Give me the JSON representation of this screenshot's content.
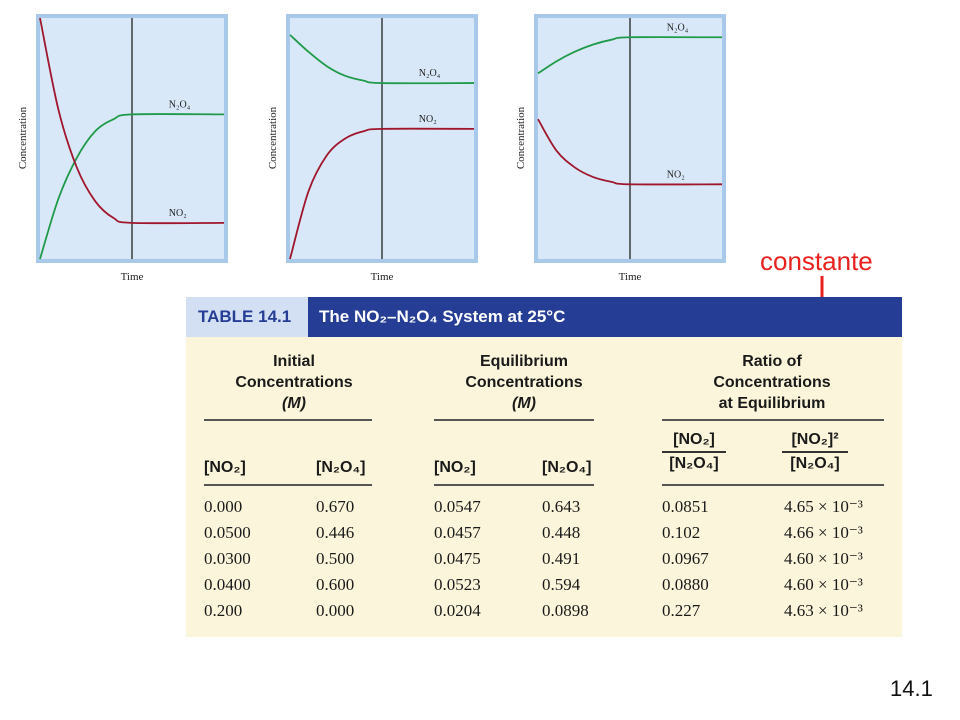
{
  "colors": {
    "n2o4": "#1e9a48",
    "no2": "#a0162c",
    "panel": "#d9e8f8",
    "frame": "#a9c9ea",
    "accent": "#e8211f",
    "table_header": "#263d95",
    "table_bg": "#fbf6db"
  },
  "chart_data": [
    {
      "type": "line",
      "xlabel": "Time",
      "ylabel": "Concentration",
      "equilibrium_at": 0.5,
      "series": [
        {
          "name": "N₂O₄",
          "values": [
            [
              0,
              0.0
            ],
            [
              0.1,
              0.25
            ],
            [
              0.2,
              0.42
            ],
            [
              0.3,
              0.53
            ],
            [
              0.4,
              0.58
            ],
            [
              0.5,
              0.6
            ],
            [
              1,
              0.6
            ]
          ]
        },
        {
          "name": "NO₂",
          "values": [
            [
              0,
              1.0
            ],
            [
              0.1,
              0.62
            ],
            [
              0.2,
              0.38
            ],
            [
              0.3,
              0.24
            ],
            [
              0.4,
              0.17
            ],
            [
              0.5,
              0.15
            ],
            [
              1,
              0.15
            ]
          ]
        }
      ]
    },
    {
      "type": "line",
      "xlabel": "Time",
      "ylabel": "Concentration",
      "equilibrium_at": 0.5,
      "series": [
        {
          "name": "N₂O₄",
          "values": [
            [
              0,
              0.93
            ],
            [
              0.1,
              0.86
            ],
            [
              0.2,
              0.8
            ],
            [
              0.3,
              0.76
            ],
            [
              0.4,
              0.74
            ],
            [
              0.5,
              0.73
            ],
            [
              1,
              0.73
            ]
          ]
        },
        {
          "name": "NO₂",
          "values": [
            [
              0,
              0.0
            ],
            [
              0.1,
              0.28
            ],
            [
              0.2,
              0.43
            ],
            [
              0.3,
              0.5
            ],
            [
              0.4,
              0.53
            ],
            [
              0.5,
              0.54
            ],
            [
              1,
              0.54
            ]
          ]
        }
      ]
    },
    {
      "type": "line",
      "xlabel": "Time",
      "ylabel": "Concentration",
      "equilibrium_at": 0.5,
      "series": [
        {
          "name": "N₂O₄",
          "values": [
            [
              0,
              0.77
            ],
            [
              0.1,
              0.82
            ],
            [
              0.2,
              0.86
            ],
            [
              0.3,
              0.89
            ],
            [
              0.4,
              0.91
            ],
            [
              0.5,
              0.92
            ],
            [
              1,
              0.92
            ]
          ]
        },
        {
          "name": "NO₂",
          "values": [
            [
              0,
              0.58
            ],
            [
              0.1,
              0.45
            ],
            [
              0.2,
              0.38
            ],
            [
              0.3,
              0.34
            ],
            [
              0.4,
              0.32
            ],
            [
              0.5,
              0.31
            ],
            [
              1,
              0.31
            ]
          ]
        }
      ]
    }
  ],
  "annotation": {
    "text": "constante"
  },
  "table": {
    "number": "TABLE 14.1",
    "title": "The NO₂–N₂O₄ System at 25°C",
    "groups": {
      "initial": [
        "Initial",
        "Concentrations",
        "(M)"
      ],
      "equilibrium": [
        "Equilibrium",
        "Concentrations",
        "(M)"
      ],
      "ratio": [
        "Ratio of",
        "Concentrations",
        "at Equilibrium"
      ]
    },
    "columns": [
      "[NO₂]",
      "[N₂O₄]",
      "[NO₂]",
      "[N₂O₄]"
    ],
    "ratio_columns": [
      {
        "num": "[NO₂]",
        "den": "[N₂O₄]"
      },
      {
        "num": "[NO₂]²",
        "den": "[N₂O₄]"
      }
    ],
    "rows": [
      [
        "0.000",
        "0.670",
        "0.0547",
        "0.643",
        "0.0851",
        "4.65 × 10⁻³"
      ],
      [
        "0.0500",
        "0.446",
        "0.0457",
        "0.448",
        "0.102",
        "4.66 × 10⁻³"
      ],
      [
        "0.0300",
        "0.500",
        "0.0475",
        "0.491",
        "0.0967",
        "4.60 × 10⁻³"
      ],
      [
        "0.0400",
        "0.600",
        "0.0523",
        "0.594",
        "0.0880",
        "4.60 × 10⁻³"
      ],
      [
        "0.200",
        "0.000",
        "0.0204",
        "0.0898",
        "0.227",
        "4.63 × 10⁻³"
      ]
    ]
  },
  "page_number": "14.1"
}
